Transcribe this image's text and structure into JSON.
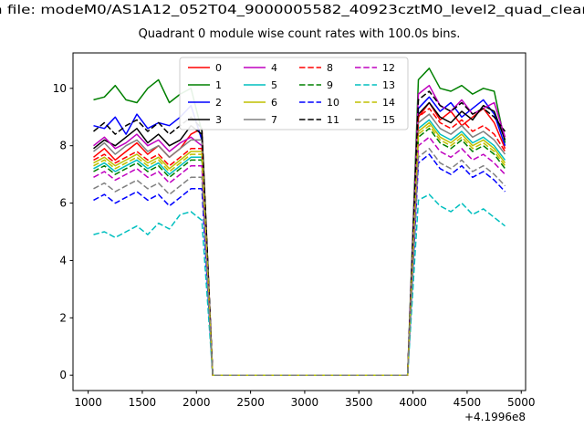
{
  "chart_data": {
    "type": "line",
    "top_title_clipped": "n file: modeM0/AS1A12_052T04_9000005582_40923cztM0_level2_quad_clean",
    "title": "Quadrant 0 module wise count rates with 100.0s bins.",
    "xlabel": "",
    "ylabel": "",
    "x_offset_label": "+4.1996e8",
    "xlim": [
      860,
      5040
    ],
    "ylim": [
      -0.535,
      11.235
    ],
    "xticks": [
      1000,
      1500,
      2000,
      2500,
      3000,
      3500,
      4000,
      4500,
      5000
    ],
    "yticks": [
      0,
      2,
      4,
      6,
      8,
      10
    ],
    "grid": false,
    "legend": {
      "position": "upper center",
      "ncol": 4
    },
    "x": [
      1050,
      1150,
      1250,
      1350,
      1450,
      1550,
      1650,
      1750,
      1850,
      1950,
      2050,
      2150,
      2250,
      2350,
      2450,
      2550,
      2650,
      2750,
      2850,
      2950,
      3050,
      3150,
      3250,
      3350,
      3450,
      3550,
      3650,
      3750,
      3850,
      3950,
      4050,
      4150,
      4250,
      4350,
      4450,
      4550,
      4650,
      4750,
      4850
    ],
    "series": [
      {
        "name": "0",
        "color": "#ff0000",
        "dash": "solid",
        "values": [
          7.6,
          7.9,
          7.5,
          7.8,
          8.1,
          7.7,
          8.0,
          7.6,
          7.9,
          8.4,
          8.6,
          0,
          0,
          0,
          0,
          0,
          0,
          0,
          0,
          0,
          0,
          0,
          0,
          0,
          0,
          0,
          0,
          0,
          0,
          0,
          9.0,
          9.5,
          8.9,
          9.2,
          8.7,
          9.0,
          9.3,
          8.8,
          7.9
        ]
      },
      {
        "name": "1",
        "color": "#008000",
        "dash": "solid",
        "values": [
          9.6,
          9.7,
          10.1,
          9.6,
          9.5,
          10.0,
          10.3,
          9.5,
          9.8,
          10.0,
          8.5,
          0,
          0,
          0,
          0,
          0,
          0,
          0,
          0,
          0,
          0,
          0,
          0,
          0,
          0,
          0,
          0,
          0,
          0,
          0,
          10.3,
          10.7,
          10.0,
          9.9,
          10.1,
          9.8,
          10.0,
          9.9,
          8.1
        ]
      },
      {
        "name": "2",
        "color": "#0000ff",
        "dash": "solid",
        "values": [
          8.7,
          8.6,
          9.0,
          8.4,
          9.1,
          8.6,
          8.8,
          8.7,
          9.0,
          9.4,
          8.2,
          0,
          0,
          0,
          0,
          0,
          0,
          0,
          0,
          0,
          0,
          0,
          0,
          0,
          0,
          0,
          0,
          0,
          0,
          0,
          9.3,
          9.7,
          9.2,
          9.5,
          9.0,
          9.3,
          9.6,
          9.1,
          8.0
        ]
      },
      {
        "name": "3",
        "color": "#000000",
        "dash": "solid",
        "values": [
          7.9,
          8.2,
          8.0,
          8.3,
          8.6,
          8.1,
          8.4,
          8.0,
          8.2,
          8.7,
          8.4,
          0,
          0,
          0,
          0,
          0,
          0,
          0,
          0,
          0,
          0,
          0,
          0,
          0,
          0,
          0,
          0,
          0,
          0,
          0,
          9.1,
          9.5,
          9.0,
          8.8,
          9.2,
          8.9,
          9.4,
          9.2,
          8.2
        ]
      },
      {
        "name": "4",
        "color": "#bf00bf",
        "dash": "solid",
        "values": [
          8.0,
          8.3,
          7.9,
          8.1,
          8.4,
          8.0,
          8.2,
          7.8,
          8.1,
          8.3,
          8.0,
          0,
          0,
          0,
          0,
          0,
          0,
          0,
          0,
          0,
          0,
          0,
          0,
          0,
          0,
          0,
          0,
          0,
          0,
          0,
          9.8,
          10.1,
          9.4,
          9.2,
          9.6,
          9.1,
          9.3,
          9.5,
          8.3
        ]
      },
      {
        "name": "5",
        "color": "#00bfbf",
        "dash": "solid",
        "values": [
          7.2,
          7.4,
          7.1,
          7.3,
          7.5,
          7.2,
          7.4,
          7.0,
          7.3,
          7.6,
          7.6,
          0,
          0,
          0,
          0,
          0,
          0,
          0,
          0,
          0,
          0,
          0,
          0,
          0,
          0,
          0,
          0,
          0,
          0,
          0,
          8.6,
          8.9,
          8.4,
          8.2,
          8.5,
          8.1,
          8.3,
          8.0,
          7.5
        ]
      },
      {
        "name": "6",
        "color": "#bfbf00",
        "dash": "solid",
        "values": [
          7.4,
          7.6,
          7.3,
          7.5,
          7.7,
          7.4,
          7.6,
          7.2,
          7.5,
          7.8,
          7.8,
          0,
          0,
          0,
          0,
          0,
          0,
          0,
          0,
          0,
          0,
          0,
          0,
          0,
          0,
          0,
          0,
          0,
          0,
          0,
          8.5,
          8.8,
          8.3,
          8.1,
          8.4,
          8.0,
          8.2,
          7.9,
          7.4
        ]
      },
      {
        "name": "7",
        "color": "#808080",
        "dash": "solid",
        "values": [
          7.8,
          8.1,
          7.7,
          8.0,
          8.2,
          7.8,
          8.0,
          7.6,
          7.9,
          8.2,
          8.2,
          0,
          0,
          0,
          0,
          0,
          0,
          0,
          0,
          0,
          0,
          0,
          0,
          0,
          0,
          0,
          0,
          0,
          0,
          0,
          8.8,
          9.1,
          8.6,
          8.4,
          8.7,
          8.3,
          8.5,
          8.2,
          7.7
        ]
      },
      {
        "name": "8",
        "color": "#ff0000",
        "dash": "dashed",
        "values": [
          7.5,
          7.7,
          7.4,
          7.6,
          7.8,
          7.5,
          7.7,
          7.3,
          7.6,
          7.9,
          7.9,
          0,
          0,
          0,
          0,
          0,
          0,
          0,
          0,
          0,
          0,
          0,
          0,
          0,
          0,
          0,
          0,
          0,
          0,
          0,
          9.0,
          9.3,
          8.8,
          8.6,
          8.9,
          8.5,
          8.7,
          8.4,
          7.8
        ]
      },
      {
        "name": "9",
        "color": "#008000",
        "dash": "dashed",
        "values": [
          7.1,
          7.3,
          7.0,
          7.2,
          7.4,
          7.1,
          7.3,
          6.9,
          7.2,
          7.5,
          7.5,
          0,
          0,
          0,
          0,
          0,
          0,
          0,
          0,
          0,
          0,
          0,
          0,
          0,
          0,
          0,
          0,
          0,
          0,
          0,
          8.3,
          8.6,
          8.1,
          7.9,
          8.2,
          7.8,
          8.0,
          7.7,
          7.2
        ]
      },
      {
        "name": "10",
        "color": "#0000ff",
        "dash": "dashed",
        "values": [
          6.1,
          6.3,
          6.0,
          6.2,
          6.4,
          6.1,
          6.3,
          5.9,
          6.2,
          6.5,
          6.5,
          0,
          0,
          0,
          0,
          0,
          0,
          0,
          0,
          0,
          0,
          0,
          0,
          0,
          0,
          0,
          0,
          0,
          0,
          0,
          7.4,
          7.7,
          7.2,
          7.0,
          7.3,
          6.9,
          7.1,
          6.8,
          6.4
        ]
      },
      {
        "name": "11",
        "color": "#000000",
        "dash": "dashed",
        "values": [
          8.5,
          8.8,
          8.4,
          8.7,
          8.9,
          8.5,
          8.8,
          8.4,
          8.7,
          9.0,
          8.6,
          0,
          0,
          0,
          0,
          0,
          0,
          0,
          0,
          0,
          0,
          0,
          0,
          0,
          0,
          0,
          0,
          0,
          0,
          0,
          9.6,
          9.9,
          9.4,
          9.2,
          9.5,
          9.1,
          9.3,
          9.0,
          8.5
        ]
      },
      {
        "name": "12",
        "color": "#bf00bf",
        "dash": "dashed",
        "values": [
          6.9,
          7.1,
          6.8,
          7.0,
          7.2,
          6.9,
          7.1,
          6.7,
          7.0,
          7.3,
          7.3,
          0,
          0,
          0,
          0,
          0,
          0,
          0,
          0,
          0,
          0,
          0,
          0,
          0,
          0,
          0,
          0,
          0,
          0,
          0,
          8.0,
          8.3,
          7.8,
          7.6,
          7.9,
          7.5,
          7.7,
          7.4,
          7.0
        ]
      },
      {
        "name": "13",
        "color": "#00bfbf",
        "dash": "dashed",
        "values": [
          4.9,
          5.0,
          4.8,
          5.0,
          5.2,
          4.9,
          5.3,
          5.1,
          5.6,
          5.7,
          5.4,
          0,
          0,
          0,
          0,
          0,
          0,
          0,
          0,
          0,
          0,
          0,
          0,
          0,
          0,
          0,
          0,
          0,
          0,
          0,
          6.1,
          6.3,
          5.9,
          5.7,
          6.0,
          5.6,
          5.8,
          5.5,
          5.2
        ]
      },
      {
        "name": "14",
        "color": "#bfbf00",
        "dash": "dashed",
        "values": [
          7.3,
          7.5,
          7.2,
          7.4,
          7.6,
          7.3,
          7.5,
          7.1,
          7.4,
          7.7,
          7.7,
          0,
          0,
          0,
          0,
          0,
          0,
          0,
          0,
          0,
          0,
          0,
          0,
          0,
          0,
          0,
          0,
          0,
          0,
          0,
          8.4,
          8.7,
          8.2,
          8.0,
          8.3,
          7.9,
          8.1,
          7.8,
          7.3
        ]
      },
      {
        "name": "15",
        "color": "#808080",
        "dash": "dashed",
        "values": [
          6.5,
          6.7,
          6.4,
          6.6,
          6.8,
          6.5,
          6.7,
          6.3,
          6.6,
          6.9,
          6.9,
          0,
          0,
          0,
          0,
          0,
          0,
          0,
          0,
          0,
          0,
          0,
          0,
          0,
          0,
          0,
          0,
          0,
          0,
          0,
          7.6,
          7.9,
          7.4,
          7.2,
          7.5,
          7.1,
          7.3,
          7.0,
          6.6
        ]
      }
    ]
  }
}
